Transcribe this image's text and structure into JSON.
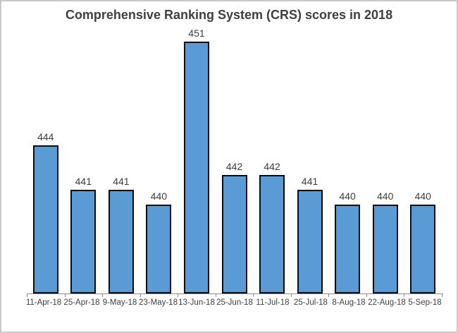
{
  "window": {
    "background": "#ffffff",
    "frame_border_color": "#c9c9c9"
  },
  "chart_data": {
    "type": "bar",
    "title": "Comprehensive Ranking System (CRS) scores in 2018",
    "categories": [
      "11-Apr-18",
      "25-Apr-18",
      "9-May-18",
      "23-May-18",
      "13-Jun-18",
      "25-Jun-18",
      "11-Jul-18",
      "25-Jul-18",
      "8-Aug-18",
      "22-Aug-18",
      "5-Sep-18"
    ],
    "values": [
      444,
      441,
      441,
      440,
      451,
      442,
      442,
      441,
      440,
      440,
      440
    ],
    "xlabel": "",
    "ylabel": "",
    "ylim": [
      434,
      452
    ],
    "grid": false,
    "legend": "none",
    "data_labels_shown": true,
    "y_axis_shown": false,
    "colors": {
      "bar_fill": "#5b9bd5",
      "bar_border": "#0d0d0d",
      "title": "#404040",
      "data_label": "#3d3d3d",
      "axis_line": "#8c8c8c",
      "axis_label": "#404040"
    }
  }
}
